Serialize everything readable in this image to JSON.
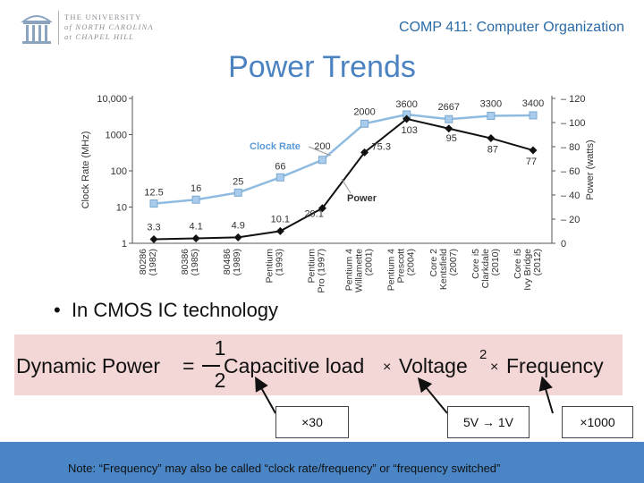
{
  "header": {
    "university": [
      "THE UNIVERSITY",
      "of NORTH CAROLINA",
      "at CHAPEL HILL"
    ],
    "course": "COMP 411: Computer Organization",
    "title": "Power Trends"
  },
  "chart_data": {
    "type": "line",
    "title": "",
    "categories": [
      "80286\n(1982)",
      "80386\n(1985)",
      "80486\n(1989)",
      "Pentium\n(1993)",
      "Pentium\nPro (1997)",
      "Pentium 4\nWillamette\n(2001)",
      "Pentium 4\nPrescott\n(2004)",
      "Core 2\nKentsfield\n(2007)",
      "Core i5\nClarkdale\n(2010)",
      "Core i5\nIvy Bridge\n(2012)"
    ],
    "series": [
      {
        "name": "Clock Rate",
        "axis": "left",
        "scale": "log",
        "color": "#8fbbe0",
        "values": [
          12.5,
          16,
          25,
          66,
          200,
          2000,
          3600,
          2667,
          3300,
          3400
        ],
        "labels": [
          "12.5",
          "16",
          "25",
          "66",
          "200",
          "2000",
          "3600",
          "2667",
          "3300",
          "3400"
        ]
      },
      {
        "name": "Power",
        "axis": "right",
        "scale": "linear",
        "color": "#111111",
        "values": [
          3.3,
          4.1,
          4.9,
          10.1,
          29.1,
          75.3,
          103,
          95,
          87,
          77
        ],
        "labels": [
          "3.3",
          "4.1",
          "4.9",
          "10.1",
          "29.1",
          "75.3",
          "103",
          "95",
          "87",
          "77"
        ]
      }
    ],
    "ylabel_left": "Clock Rate (MHz)",
    "ylabel_right": "Power (watts)",
    "yticks_left": [
      "1",
      "10",
      "100",
      "1000",
      "10,000"
    ],
    "yticks_left_values": [
      1,
      10,
      100,
      1000,
      10000
    ],
    "yticks_right": [
      "0",
      "20",
      "40",
      "60",
      "80",
      "100",
      "120"
    ],
    "yticks_right_values": [
      0,
      20,
      40,
      60,
      80,
      100,
      120
    ],
    "ylim_left": [
      1,
      10000
    ],
    "ylim_right": [
      0,
      120
    ],
    "legend": [
      "Clock Rate",
      "Power"
    ]
  },
  "body": {
    "bullet": "In CMOS IC technology",
    "formula": {
      "lhs": "Dynamic Power",
      "frac_num": "1",
      "frac_den": "2",
      "term1": "Capacitive load",
      "term2": "Voltage",
      "exponent": "2",
      "term3": "Frequency"
    },
    "callouts": [
      "×30",
      "5V → 1V",
      "×1000"
    ]
  },
  "footer": {
    "note": "Note:  “Frequency” may also be called “clock rate/frequency” or “frequency switched”"
  }
}
